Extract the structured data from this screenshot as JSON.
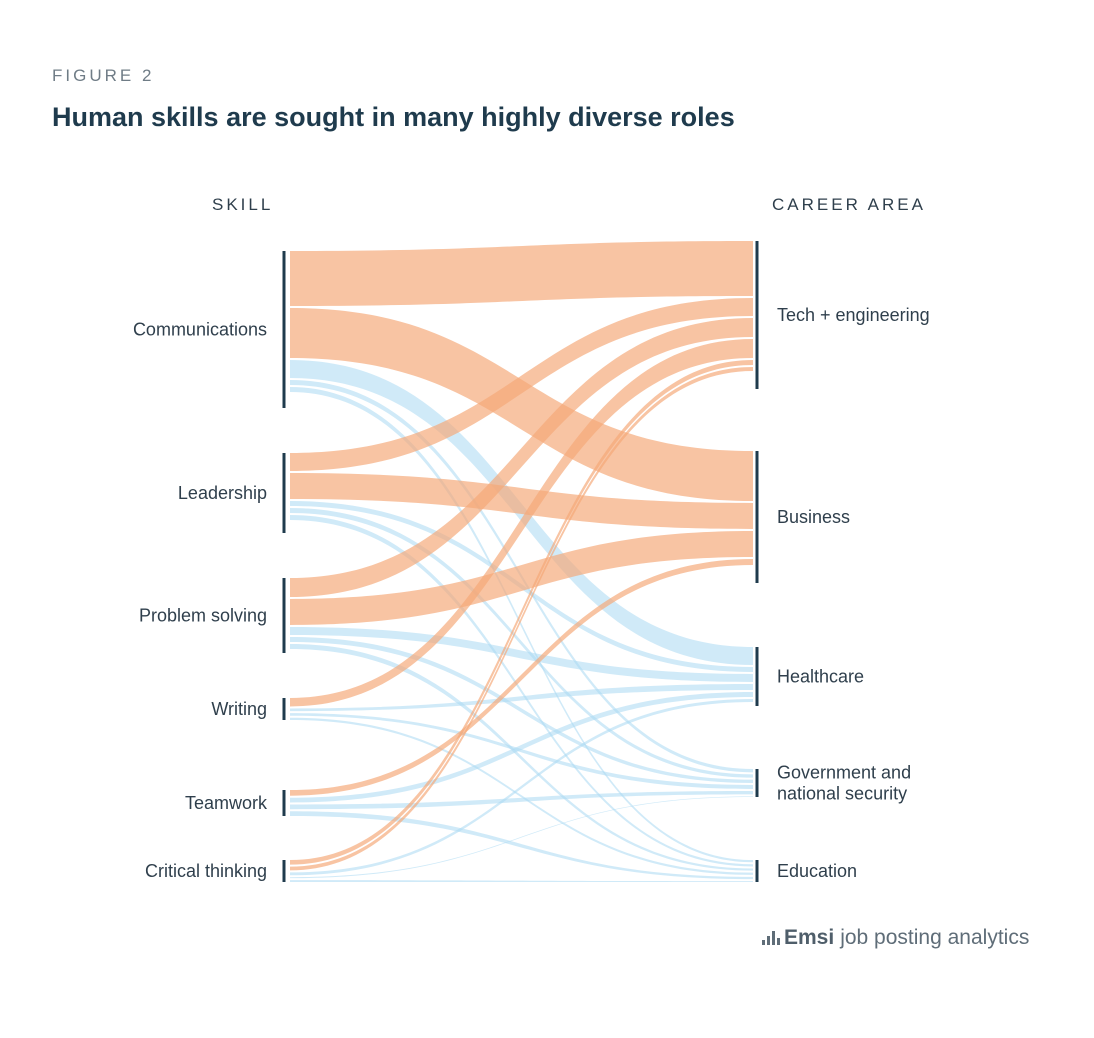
{
  "figure_label": "FIGURE 2",
  "title": "Human skills are sought in many highly diverse roles",
  "columns": {
    "left": "SKILL",
    "right": "CAREER AREA"
  },
  "colors": {
    "orange": "#f5a878",
    "blue": "#a9d9f2",
    "bar": "#1f3b4d"
  },
  "skills": [
    {
      "id": "communications",
      "label": "Communications"
    },
    {
      "id": "leadership",
      "label": "Leadership"
    },
    {
      "id": "problem-solving",
      "label": "Problem solving"
    },
    {
      "id": "writing",
      "label": "Writing"
    },
    {
      "id": "teamwork",
      "label": "Teamwork"
    },
    {
      "id": "critical-thinking",
      "label": "Critical thinking"
    }
  ],
  "careers": [
    {
      "id": "tech-engineering",
      "lines": [
        "Tech + engineering"
      ]
    },
    {
      "id": "business",
      "lines": [
        "Business"
      ]
    },
    {
      "id": "healthcare",
      "lines": [
        "Healthcare"
      ]
    },
    {
      "id": "government",
      "lines": [
        "Government and",
        "national security"
      ]
    },
    {
      "id": "education",
      "lines": [
        "Education"
      ]
    }
  ],
  "flows": [
    {
      "from": "communications",
      "to": "tech-engineering",
      "value": 55,
      "color": "orange"
    },
    {
      "from": "communications",
      "to": "business",
      "value": 50,
      "color": "orange"
    },
    {
      "from": "communications",
      "to": "healthcare",
      "value": 18,
      "color": "blue"
    },
    {
      "from": "communications",
      "to": "government",
      "value": 5,
      "color": "blue"
    },
    {
      "from": "communications",
      "to": "education",
      "value": 5,
      "color": "blue"
    },
    {
      "from": "leadership",
      "to": "tech-engineering",
      "value": 18,
      "color": "orange"
    },
    {
      "from": "leadership",
      "to": "business",
      "value": 26,
      "color": "orange"
    },
    {
      "from": "leadership",
      "to": "healthcare",
      "value": 5,
      "color": "blue"
    },
    {
      "from": "leadership",
      "to": "government",
      "value": 5,
      "color": "blue"
    },
    {
      "from": "leadership",
      "to": "education",
      "value": 5,
      "color": "blue"
    },
    {
      "from": "problem-solving",
      "to": "tech-engineering",
      "value": 19,
      "color": "orange"
    },
    {
      "from": "problem-solving",
      "to": "business",
      "value": 26,
      "color": "orange"
    },
    {
      "from": "problem-solving",
      "to": "healthcare",
      "value": 8,
      "color": "blue"
    },
    {
      "from": "problem-solving",
      "to": "government",
      "value": 5,
      "color": "blue"
    },
    {
      "from": "problem-solving",
      "to": "education",
      "value": 5,
      "color": "blue"
    },
    {
      "from": "writing",
      "to": "tech-engineering",
      "value": 19,
      "color": "orange"
    },
    {
      "from": "writing",
      "to": "healthcare",
      "value": 6,
      "color": "blue"
    },
    {
      "from": "writing",
      "to": "government",
      "value": 6,
      "color": "blue"
    },
    {
      "from": "writing",
      "to": "education",
      "value": 5,
      "color": "blue"
    },
    {
      "from": "teamwork",
      "to": "business",
      "value": 6,
      "color": "orange"
    },
    {
      "from": "teamwork",
      "to": "healthcare",
      "value": 5,
      "color": "blue"
    },
    {
      "from": "teamwork",
      "to": "government",
      "value": 5,
      "color": "blue"
    },
    {
      "from": "teamwork",
      "to": "education",
      "value": 5,
      "color": "blue"
    },
    {
      "from": "critical-thinking",
      "to": "tech-engineering",
      "value": 5,
      "color": "orange"
    },
    {
      "from": "critical-thinking",
      "to": "tech-engineering",
      "value": 4,
      "color": "orange"
    },
    {
      "from": "critical-thinking",
      "to": "healthcare",
      "value": 3,
      "color": "blue"
    },
    {
      "from": "critical-thinking",
      "to": "government",
      "value": 1,
      "color": "blue"
    },
    {
      "from": "critical-thinking",
      "to": "education",
      "value": 2,
      "color": "blue"
    }
  ],
  "source": {
    "brand": "Emsi",
    "text": "job posting analytics"
  }
}
